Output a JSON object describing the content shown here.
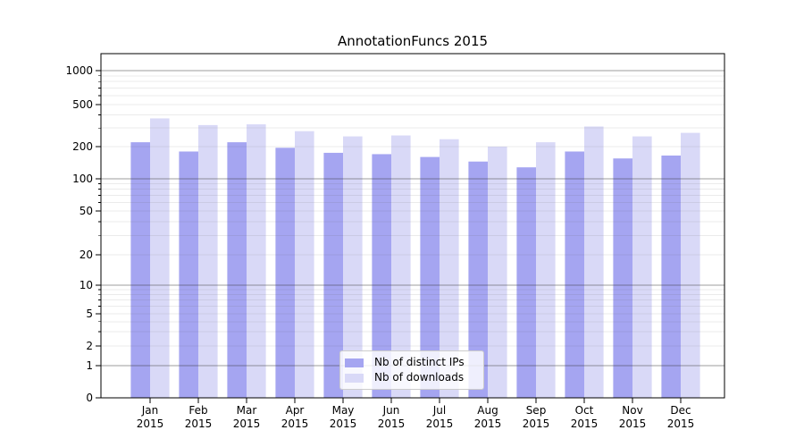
{
  "chart_data": {
    "type": "bar",
    "title": "AnnotationFuncs 2015",
    "categories": [
      "Jan\n2015",
      "Feb\n2015",
      "Mar\n2015",
      "Apr\n2015",
      "May\n2015",
      "Jun\n2015",
      "Jul\n2015",
      "Aug\n2015",
      "Sep\n2015",
      "Oct\n2015",
      "Nov\n2015",
      "Dec\n2015"
    ],
    "series": [
      {
        "name": "Nb of distinct IPs",
        "color": "#a5a5f1",
        "values": [
          220,
          180,
          220,
          195,
          175,
          170,
          160,
          145,
          128,
          180,
          155,
          165
        ]
      },
      {
        "name": "Nb of downloads",
        "color": "#d9d9f7",
        "values": [
          370,
          320,
          325,
          280,
          250,
          255,
          235,
          200,
          220,
          310,
          250,
          270
        ]
      }
    ],
    "xlabel": "",
    "ylabel": "",
    "yscale": "symlog",
    "y_ticks": [
      0,
      1,
      2,
      5,
      10,
      20,
      50,
      100,
      200,
      500,
      1000
    ],
    "ylim": [
      0,
      1500
    ],
    "grid": true,
    "legend_position": "lower center"
  },
  "colors": {
    "grid_major": "#b0b0b0",
    "grid_minor": "#e9e9e9",
    "axis_frame": "#000000",
    "background": "#ffffff"
  }
}
